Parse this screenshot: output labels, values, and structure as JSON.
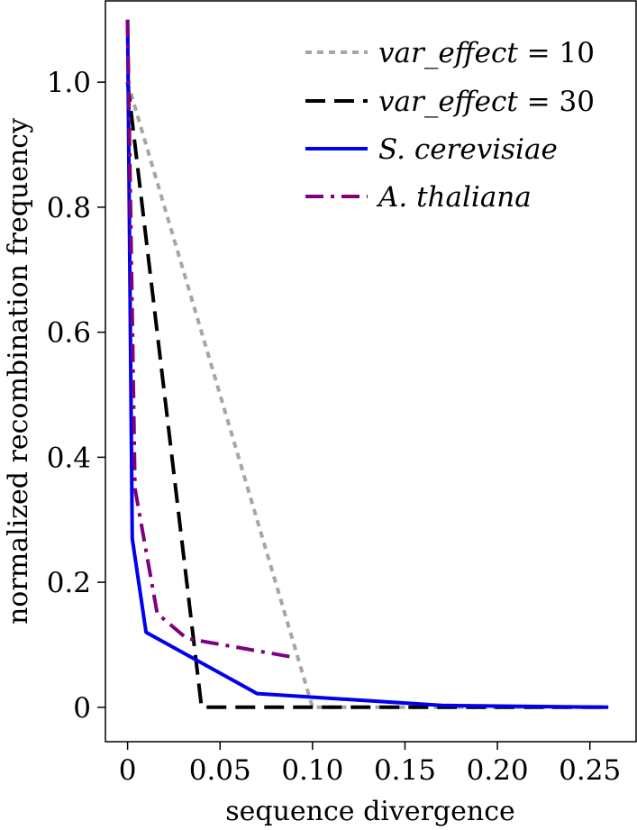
{
  "chart_data": {
    "type": "line",
    "title": "",
    "xlabel": "sequence divergence",
    "ylabel": "normalized recombination frequency",
    "xlim": [
      -0.012,
      0.275
    ],
    "ylim": [
      -0.055,
      1.13
    ],
    "x_ticks": [
      0,
      0.05,
      0.1,
      0.15,
      0.2,
      0.25
    ],
    "x_tick_labels": [
      "0",
      "0.05",
      "0.10",
      "0.15",
      "0.20",
      "0.25"
    ],
    "y_ticks": [
      0,
      0.2,
      0.4,
      0.6,
      0.8,
      1.0
    ],
    "y_tick_labels": [
      "0",
      "0.2",
      "0.4",
      "0.6",
      "0.8",
      "1.0"
    ],
    "grid": false,
    "legend_position": "top-right",
    "series": [
      {
        "name": "var_effect = 10",
        "legend_parts": [
          "var_effect",
          " = 10"
        ],
        "color": "#a6a6a6",
        "style": "dotted",
        "x": [
          0,
          0.1,
          0.26
        ],
        "y": [
          1.0,
          0.0,
          0.0
        ]
      },
      {
        "name": "var_effect = 30",
        "legend_parts": [
          "var_effect",
          " = 30"
        ],
        "color": "#000000",
        "style": "dashed",
        "x": [
          0,
          0.04,
          0.26
        ],
        "y": [
          1.0,
          0.0,
          0.0
        ]
      },
      {
        "name": "S. cerevisiae",
        "legend_parts": [
          "S. cerevisiae",
          ""
        ],
        "color": "#0000ee",
        "style": "solid",
        "x": [
          0,
          0.0025,
          0.01,
          0.07,
          0.17,
          0.26
        ],
        "y": [
          1.1,
          0.27,
          0.12,
          0.022,
          0.003,
          0.0
        ]
      },
      {
        "name": "A. thaliana",
        "legend_parts": [
          "A. thaliana",
          ""
        ],
        "color": "#800080",
        "style": "dashdot",
        "x": [
          0,
          0.004,
          0.016,
          0.032,
          0.09
        ],
        "y": [
          1.1,
          0.35,
          0.15,
          0.11,
          0.08
        ]
      }
    ]
  }
}
